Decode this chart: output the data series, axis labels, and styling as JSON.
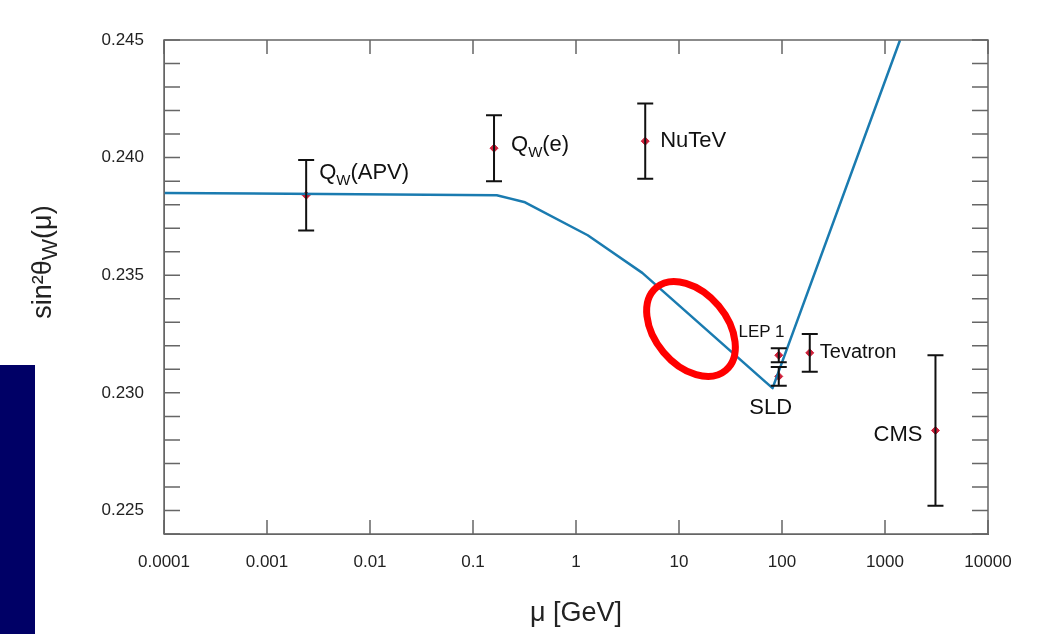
{
  "chart_data": {
    "type": "line",
    "xlabel": "μ [GeV]",
    "ylabel": "sin²θ$_{W}$(μ)",
    "log": "x",
    "xlim": [
      0.0001,
      10000
    ],
    "xticks": [
      0.0001,
      0.001,
      0.01,
      0.1,
      1,
      10,
      100,
      1000,
      10000
    ],
    "ylim": [
      0.224,
      0.245
    ],
    "yticks": [
      {
        "value": 0.224,
        "label": null
      },
      {
        "value": 0.225,
        "label": "0.225"
      },
      {
        "value": 0.226,
        "label": null
      },
      {
        "value": 0.227,
        "label": null
      },
      {
        "value": 0.228,
        "label": null
      },
      {
        "value": 0.229,
        "label": null
      },
      {
        "value": 0.23,
        "label": "0.230"
      },
      {
        "value": 0.231,
        "label": null
      },
      {
        "value": 0.232,
        "label": null
      },
      {
        "value": 0.233,
        "label": null
      },
      {
        "value": 0.234,
        "label": null
      },
      {
        "value": 0.235,
        "label": "0.235"
      },
      {
        "value": 0.236,
        "label": null
      },
      {
        "value": 0.237,
        "label": null
      },
      {
        "value": 0.238,
        "label": null
      },
      {
        "value": 0.239,
        "label": null
      },
      {
        "value": 0.24,
        "label": "0.240"
      },
      {
        "value": 0.241,
        "label": null
      },
      {
        "value": 0.242,
        "label": null
      },
      {
        "value": 0.243,
        "label": null
      },
      {
        "value": 0.244,
        "label": null
      },
      {
        "value": 0.245,
        "label": "0.245"
      }
    ],
    "grid": false,
    "legend": false,
    "series": [
      {
        "color": "#1a7bb0",
        "marker": "none",
        "line_style": "solid",
        "x": [
          0.0001,
          0.17,
          0.32,
          1.3,
          4.4,
          81,
          1400
        ],
        "values": [
          0.2385,
          0.2384,
          0.2381,
          0.2367,
          0.2351,
          0.2302,
          0.245
        ]
      },
      {
        "type": "scatter",
        "color": "#d0203a",
        "marker": "diamond",
        "x": [
          0.0024,
          0.16,
          4.7,
          93,
          93,
          186,
          3090
        ],
        "values": [
          0.2384,
          0.2404,
          0.2407,
          0.2316,
          0.2307,
          0.2317,
          0.2284
        ],
        "errors": [
          0.0015,
          0.0014,
          0.0016,
          0.0003,
          0.0004,
          0.0008,
          0.0032
        ]
      }
    ],
    "annotations": [
      {
        "text": "Q$_{W}$(APV)",
        "x": 0.0024,
        "y": 0.2384
      },
      {
        "text": "Q$_{W}$(e)",
        "x": 0.16,
        "y": 0.2404
      },
      {
        "text": "NuTeV",
        "x": 4.7,
        "y": 0.2407
      },
      {
        "text": "LEP 1",
        "x": 93,
        "y": 0.2316
      },
      {
        "text": "SLD",
        "x": 93,
        "y": 0.2307
      },
      {
        "text": "Tevatron",
        "x": 186,
        "y": 0.2317
      },
      {
        "text": "CMS",
        "x": 3090,
        "y": 0.2284
      }
    ]
  }
}
